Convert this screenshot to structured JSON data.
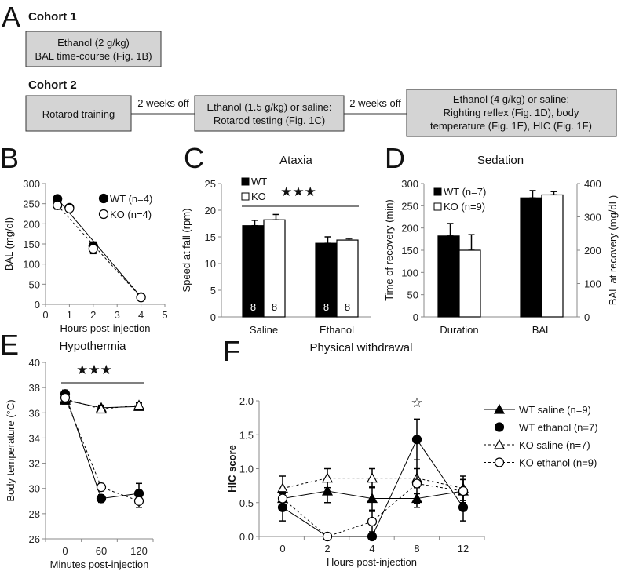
{
  "panel_letters": [
    "A",
    "B",
    "C",
    "D",
    "E",
    "F"
  ],
  "schematic": {
    "cohort1": {
      "title": "Cohort 1",
      "box": [
        "Ethanol (2 g/kg)",
        "BAL time-course (Fig. 1B)"
      ]
    },
    "cohort2": {
      "title": "Cohort 2",
      "box1": [
        "Rotarod training"
      ],
      "gap1": "2 weeks off",
      "box2": [
        "Ethanol (1.5 g/kg) or saline:",
        "Rotarod testing (Fig. 1C)"
      ],
      "gap2": "2 weeks off",
      "box3": [
        "Ethanol (4 g/kg) or saline:",
        "Righting reflex (Fig. 1D), body",
        "temperature (Fig. 1E), HIC (Fig. 1F)"
      ]
    }
  },
  "chart_data": [
    {
      "id": "B",
      "type": "line",
      "title": "",
      "xlabel": "Hours post-injection",
      "ylabel": "BAL (mg/dl)",
      "xlim": [
        0,
        5
      ],
      "ylim": [
        0,
        300
      ],
      "xticks": [
        0,
        1,
        2,
        3,
        4,
        5
      ],
      "yticks": [
        0,
        50,
        100,
        150,
        200,
        250,
        300
      ],
      "legend": "top-right",
      "series": [
        {
          "name": "WT (n=4)",
          "marker": "filled-circle",
          "dash": false,
          "x": [
            0.5,
            1,
            2,
            4
          ],
          "y": [
            262,
            240,
            145,
            18
          ],
          "err": [
            6,
            5,
            10,
            3
          ]
        },
        {
          "name": "KO (n=4)",
          "marker": "open-circle",
          "dash": true,
          "x": [
            0.5,
            1,
            2,
            4
          ],
          "y": [
            246,
            238,
            138,
            17
          ],
          "err": [
            10,
            6,
            12,
            3
          ]
        }
      ]
    },
    {
      "id": "C",
      "type": "bar",
      "title": "Ataxia",
      "xlabel": "",
      "ylabel": "Speed at fall (rpm)",
      "ylim": [
        0,
        25
      ],
      "yticks": [
        0,
        5,
        10,
        15,
        20,
        25
      ],
      "categories": [
        "Saline",
        "Ethanol"
      ],
      "legend": "top-left",
      "significance": "★★★",
      "series": [
        {
          "name": "WT",
          "fill": "#000000",
          "values": [
            17.1,
            13.8
          ],
          "err": [
            1.0,
            1.2
          ],
          "n": [
            "8",
            "8"
          ]
        },
        {
          "name": "KO",
          "fill": "#ffffff",
          "values": [
            18.2,
            14.4
          ],
          "err": [
            1.0,
            0.3
          ],
          "n": [
            "8",
            "8"
          ]
        }
      ]
    },
    {
      "id": "D",
      "type": "bar",
      "title": "Sedation",
      "xlabel": "",
      "ylabel": "Time of recovery (min)",
      "ylabel_right": "BAL at recovery (mg/dL)",
      "ylim": [
        0,
        300
      ],
      "yticks": [
        0,
        50,
        100,
        150,
        200,
        250,
        300
      ],
      "ylim_right": [
        0,
        400
      ],
      "yticks_right": [
        0,
        100,
        200,
        300,
        400
      ],
      "categories": [
        "Duration",
        "BAL"
      ],
      "category_axis": [
        "left",
        "right"
      ],
      "legend": "top-left",
      "series": [
        {
          "name": "WT (n=7)",
          "fill": "#000000",
          "values": [
            182,
            357
          ],
          "err": [
            28,
            22
          ]
        },
        {
          "name": "KO (n=9)",
          "fill": "#ffffff",
          "values": [
            150,
            366
          ],
          "err": [
            35,
            10
          ]
        }
      ]
    },
    {
      "id": "E",
      "type": "line",
      "title": "Hypothermia",
      "xlabel": "Minutes post-injection",
      "ylabel": "Body temperature (°C)",
      "categories": [
        "0",
        "60",
        "120"
      ],
      "ylim": [
        26,
        40
      ],
      "yticks": [
        26,
        28,
        30,
        32,
        34,
        36,
        38,
        40
      ],
      "significance": "★★★",
      "series": [
        {
          "name": "WT saline",
          "marker": "filled-triangle",
          "dash": false,
          "y": [
            37.0,
            36.4,
            36.5
          ],
          "err": [
            0.3,
            0.2,
            0.2
          ]
        },
        {
          "name": "WT ethanol",
          "marker": "filled-circle",
          "dash": false,
          "y": [
            37.5,
            29.2,
            29.6
          ],
          "err": [
            0.3,
            0.3,
            0.8
          ]
        },
        {
          "name": "KO saline",
          "marker": "open-triangle",
          "dash": true,
          "y": [
            37.1,
            36.3,
            36.6
          ],
          "err": [
            0.3,
            0.2,
            0.2
          ]
        },
        {
          "name": "KO ethanol",
          "marker": "open-circle",
          "dash": true,
          "y": [
            37.2,
            30.1,
            29.0
          ],
          "err": [
            0.3,
            0.3,
            0.5
          ]
        }
      ]
    },
    {
      "id": "F",
      "type": "line",
      "title": "Physical withdrawal",
      "xlabel": "Hours post-injection",
      "ylabel": "HIC score",
      "categories": [
        "0",
        "2",
        "4",
        "8",
        "12"
      ],
      "ylim": [
        0,
        2
      ],
      "yticks": [
        "0.0",
        "0.5",
        "1.0",
        "1.5",
        "2.0"
      ],
      "significance": "☆",
      "legend": "right",
      "series": [
        {
          "name": "WT saline (n=9)",
          "marker": "filled-triangle",
          "dash": false,
          "y": [
            0.56,
            0.67,
            0.56,
            0.56,
            0.67
          ],
          "err": [
            0.1,
            0.17,
            0.17,
            0.07,
            0.17
          ]
        },
        {
          "name": "WT ethanol (n=7)",
          "marker": "filled-circle",
          "dash": false,
          "y": [
            0.43,
            0,
            0,
            1.43,
            0.43
          ],
          "err": [
            0.2,
            0,
            0,
            0.3,
            0.2
          ]
        },
        {
          "name": "KO saline (n=7)",
          "marker": "open-triangle",
          "dash": true,
          "y": [
            0.71,
            0.86,
            0.86,
            0.86,
            0.71
          ],
          "err": [
            0.18,
            0.14,
            0.14,
            0.14,
            0.18
          ]
        },
        {
          "name": "KO ethanol (n=9)",
          "marker": "open-circle",
          "dash": true,
          "y": [
            0.56,
            0,
            0.22,
            0.78,
            0.67
          ],
          "err": [
            0.1,
            0,
            0.15,
            0.35,
            0.17
          ]
        }
      ]
    }
  ]
}
